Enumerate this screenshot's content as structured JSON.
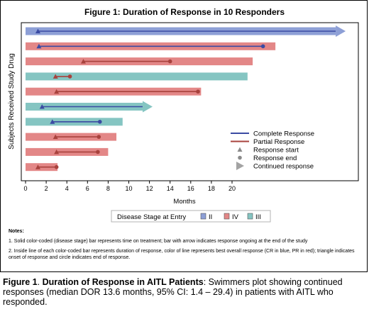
{
  "chart_data": {
    "type": "swimmer",
    "title": "Figure 1: Duration of Response in 10 Responders",
    "xlabel": "Months",
    "ylabel": "Subjects Received Study Drug",
    "xlim": [
      0,
      31
    ],
    "xticks": [
      0,
      2,
      4,
      6,
      8,
      10,
      12,
      14,
      16,
      18,
      20
    ],
    "stage_legend": {
      "title": "Disease Stage at Entry",
      "entries": [
        {
          "label": "II",
          "color": "#8d9fd6"
        },
        {
          "label": "IV",
          "color": "#e38787"
        },
        {
          "label": "III",
          "color": "#85c5c2"
        }
      ]
    },
    "response_legend": [
      {
        "label": "Complete Response",
        "kind": "line",
        "color": "#3b4ba3"
      },
      {
        "label": "Partial Response",
        "kind": "line",
        "color": "#a8423d"
      },
      {
        "label": "Response start",
        "kind": "triangle",
        "color": "#8a8a8a"
      },
      {
        "label": "Response end",
        "kind": "circle",
        "color": "#8a8a8a"
      },
      {
        "label": "Continued response",
        "kind": "arrow",
        "color": "#a3a3a3"
      }
    ],
    "subjects": [
      {
        "stage": "II",
        "duration": 31.0,
        "ongoing": true,
        "response": "CR",
        "start": 1.2,
        "end": null
      },
      {
        "stage": "IV",
        "duration": 24.2,
        "ongoing": false,
        "response": "CR",
        "start": 1.3,
        "end": 23.0
      },
      {
        "stage": "IV",
        "duration": 22.0,
        "ongoing": false,
        "response": "PR",
        "start": 5.6,
        "end": 14.0
      },
      {
        "stage": "III",
        "duration": 21.5,
        "ongoing": false,
        "response": "PR",
        "start": 2.9,
        "end": 4.3
      },
      {
        "stage": "IV",
        "duration": 17.0,
        "ongoing": false,
        "response": "PR",
        "start": 3.0,
        "end": 16.7
      },
      {
        "stage": "III",
        "duration": 12.3,
        "ongoing": true,
        "response": "CR",
        "start": 1.6,
        "end": null
      },
      {
        "stage": "III",
        "duration": 9.4,
        "ongoing": false,
        "response": "CR",
        "start": 2.6,
        "end": 7.2
      },
      {
        "stage": "IV",
        "duration": 8.8,
        "ongoing": false,
        "response": "PR",
        "start": 2.9,
        "end": 7.1
      },
      {
        "stage": "IV",
        "duration": 8.0,
        "ongoing": false,
        "response": "PR",
        "start": 3.0,
        "end": 7.0
      },
      {
        "stage": "IV",
        "duration": 3.1,
        "ongoing": false,
        "response": "PR",
        "start": 1.2,
        "end": 3.0
      }
    ]
  },
  "notes": {
    "header": "Notes:",
    "items": [
      "1. Solid color-coded (disease stage) bar represents time on treatment; bar with arrow indicates response ongoing at the end of the study",
      "2. Inside line of each color-coded bar represents duration of response, color of line represents best overall response (CR in blue, PR in red); triangle indicates onset of response and circle indicates end of response."
    ]
  },
  "caption": {
    "label": "Figure 1",
    "label_suffix": ". ",
    "bold_lead": "Duration of Response in AITL Patients",
    "rest": ": Swimmers plot showing continued responses (median DOR 13.6 months, 95% CI: 1.4 – 29.4) in patients with AITL who responded."
  }
}
